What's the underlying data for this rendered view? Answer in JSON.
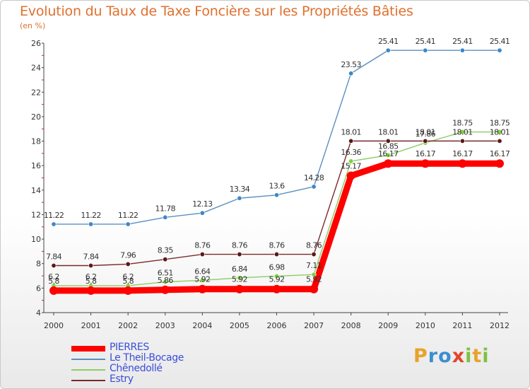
{
  "header": {
    "title": "Evolution du Taux de Taxe Foncière sur les Propriétés Bâties",
    "unit": "(en %)"
  },
  "brand": {
    "letters": [
      {
        "ch": "P",
        "color": "#e8a32a"
      },
      {
        "ch": "r",
        "color": "#3a8fd0"
      },
      {
        "ch": "o",
        "color": "#3a8fd0"
      },
      {
        "ch": "x",
        "color": "#e2452b"
      },
      {
        "ch": "i",
        "color": "#7cc242"
      },
      {
        "ch": "t",
        "color": "#e8a32a"
      },
      {
        "ch": "i",
        "color": "#7cc242"
      }
    ]
  },
  "chart_data": {
    "type": "line",
    "title": "Evolution du Taux de Taxe Foncière sur les Propriétés Bâties",
    "ylabel": "(en %)",
    "xlabel": "",
    "x": [
      "2000",
      "2001",
      "2002",
      "2003",
      "2004",
      "2005",
      "2006",
      "2007",
      "2008",
      "2009",
      "2010",
      "2011",
      "2012"
    ],
    "ylim": [
      4,
      26
    ],
    "yticks": [
      4,
      6,
      8,
      10,
      12,
      14,
      16,
      18,
      20,
      22,
      24,
      26
    ],
    "grid": false,
    "legend_position": "bottom-left",
    "series": [
      {
        "name": "PIERRES",
        "color": "#ff0000",
        "values": [
          5.8,
          5.8,
          5.8,
          5.86,
          5.92,
          5.92,
          5.92,
          5.92,
          15.17,
          16.17,
          16.17,
          16.17,
          16.17
        ],
        "labels": [
          "5.8",
          "5.8",
          "5.8",
          "5.86",
          "5.92",
          "5.92",
          "5.92",
          "5.92",
          "15.17",
          "16.17",
          "16.17",
          "16.17",
          "16.17"
        ]
      },
      {
        "name": "Le Theil-Bocage",
        "color": "#5a8fc0",
        "values": [
          11.22,
          11.22,
          11.22,
          11.78,
          12.13,
          13.34,
          13.6,
          14.28,
          23.53,
          25.41,
          25.41,
          25.41,
          25.41
        ],
        "labels": [
          "11.22",
          "11.22",
          "11.22",
          "11.78",
          "12.13",
          "13.34",
          "13.6",
          "14.28",
          "23.53",
          "25.41",
          "25.41",
          "25.41",
          "25.41"
        ]
      },
      {
        "name": "Chênedollé",
        "color": "#8ecc62",
        "values": [
          6.2,
          6.2,
          6.2,
          6.51,
          6.64,
          6.84,
          6.98,
          7.11,
          16.36,
          16.85,
          17.86,
          18.75,
          18.75
        ],
        "labels": [
          "6.2",
          "6.2",
          "6.2",
          "6.51",
          "6.64",
          "6.84",
          "6.98",
          "7.11",
          "16.36",
          "16.85",
          "17.86",
          "18.75",
          "18.75"
        ]
      },
      {
        "name": "Estry",
        "color": "#7a2a2a",
        "values": [
          7.84,
          7.84,
          7.96,
          8.35,
          8.76,
          8.76,
          8.76,
          8.76,
          18.01,
          18.01,
          18.01,
          18.01,
          18.01
        ],
        "labels": [
          "7.84",
          "7.84",
          "7.96",
          "8.35",
          "8.76",
          "8.76",
          "8.76",
          "8.76",
          "18.01",
          "18.01",
          "18.01",
          "18.01",
          "18.01"
        ]
      }
    ]
  }
}
